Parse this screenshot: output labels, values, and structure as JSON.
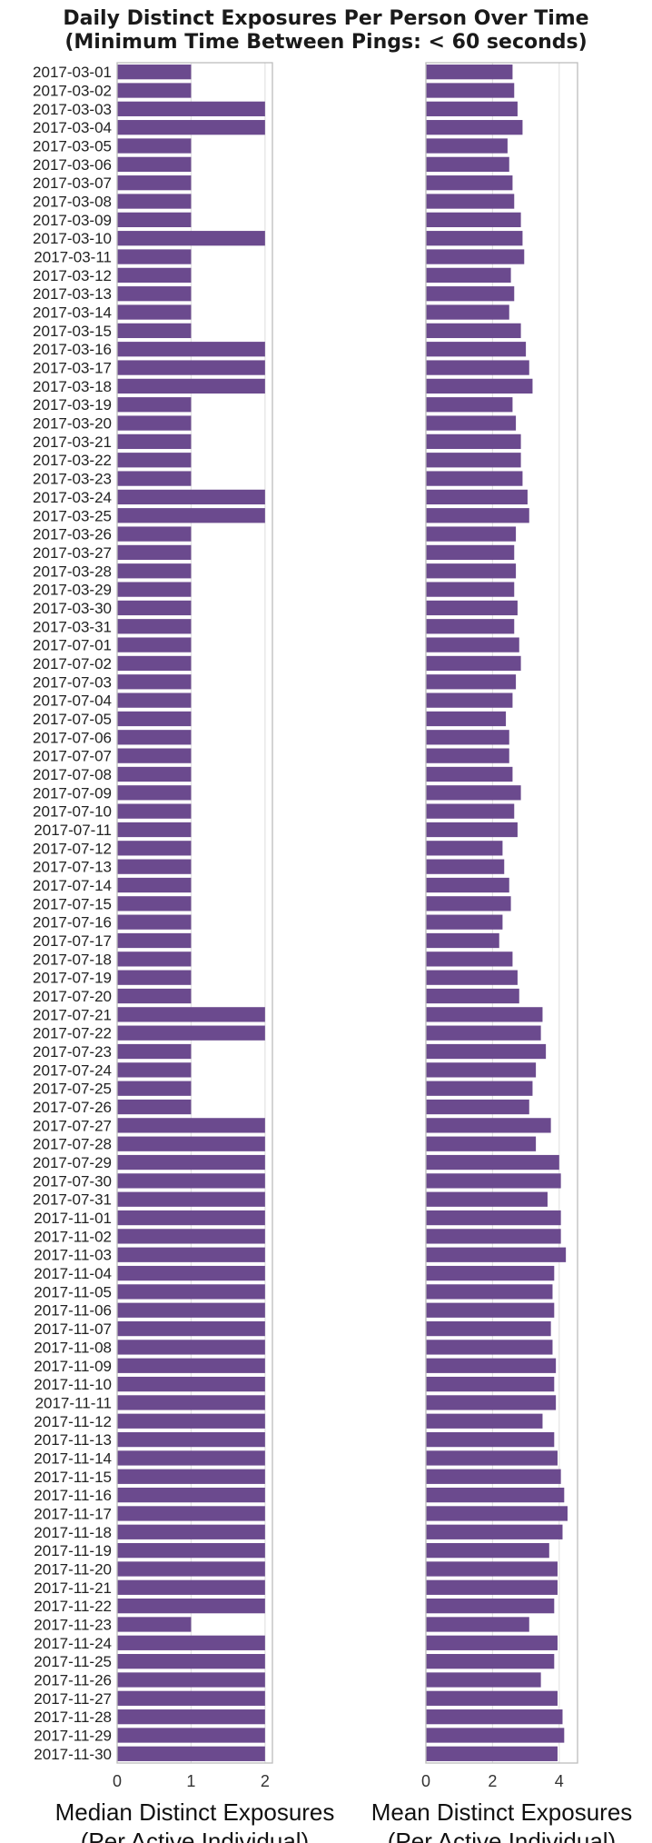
{
  "title": {
    "line1": "Daily Distinct Exposures Per Person Over Time",
    "line2": "(Minimum Time Between Pings: < 60 seconds)"
  },
  "colors": {
    "bar": "#6b4a8e",
    "grid": "#e3e3e3",
    "frame": "#bdbdbd"
  },
  "chart_data": [
    {
      "type": "bar",
      "orientation": "horizontal",
      "xlabel": [
        "Median Distinct Exposures",
        "(Per Active Individual)"
      ],
      "xlim": [
        0,
        2.1
      ],
      "xticks": [
        0,
        1,
        2
      ],
      "grid": true,
      "categories": [
        "2017-03-01",
        "2017-03-02",
        "2017-03-03",
        "2017-03-04",
        "2017-03-05",
        "2017-03-06",
        "2017-03-07",
        "2017-03-08",
        "2017-03-09",
        "2017-03-10",
        "2017-03-11",
        "2017-03-12",
        "2017-03-13",
        "2017-03-14",
        "2017-03-15",
        "2017-03-16",
        "2017-03-17",
        "2017-03-18",
        "2017-03-19",
        "2017-03-20",
        "2017-03-21",
        "2017-03-22",
        "2017-03-23",
        "2017-03-24",
        "2017-03-25",
        "2017-03-26",
        "2017-03-27",
        "2017-03-28",
        "2017-03-29",
        "2017-03-30",
        "2017-03-31",
        "2017-07-01",
        "2017-07-02",
        "2017-07-03",
        "2017-07-04",
        "2017-07-05",
        "2017-07-06",
        "2017-07-07",
        "2017-07-08",
        "2017-07-09",
        "2017-07-10",
        "2017-07-11",
        "2017-07-12",
        "2017-07-13",
        "2017-07-14",
        "2017-07-15",
        "2017-07-16",
        "2017-07-17",
        "2017-07-18",
        "2017-07-19",
        "2017-07-20",
        "2017-07-21",
        "2017-07-22",
        "2017-07-23",
        "2017-07-24",
        "2017-07-25",
        "2017-07-26",
        "2017-07-27",
        "2017-07-28",
        "2017-07-29",
        "2017-07-30",
        "2017-07-31",
        "2017-11-01",
        "2017-11-02",
        "2017-11-03",
        "2017-11-04",
        "2017-11-05",
        "2017-11-06",
        "2017-11-07",
        "2017-11-08",
        "2017-11-09",
        "2017-11-10",
        "2017-11-11",
        "2017-11-12",
        "2017-11-13",
        "2017-11-14",
        "2017-11-15",
        "2017-11-16",
        "2017-11-17",
        "2017-11-18",
        "2017-11-19",
        "2017-11-20",
        "2017-11-21",
        "2017-11-22",
        "2017-11-23",
        "2017-11-24",
        "2017-11-25",
        "2017-11-26",
        "2017-11-27",
        "2017-11-28",
        "2017-11-29",
        "2017-11-30"
      ],
      "values": [
        1,
        1,
        2,
        2,
        1,
        1,
        1,
        1,
        1,
        2,
        1,
        1,
        1,
        1,
        1,
        2,
        2,
        2,
        1,
        1,
        1,
        1,
        1,
        2,
        2,
        1,
        1,
        1,
        1,
        1,
        1,
        1,
        1,
        1,
        1,
        1,
        1,
        1,
        1,
        1,
        1,
        1,
        1,
        1,
        1,
        1,
        1,
        1,
        1,
        1,
        1,
        2,
        2,
        1,
        1,
        1,
        1,
        2,
        2,
        2,
        2,
        2,
        2,
        2,
        2,
        2,
        2,
        2,
        2,
        2,
        2,
        2,
        2,
        2,
        2,
        2,
        2,
        2,
        2,
        2,
        2,
        2,
        2,
        2,
        1,
        2,
        2,
        2,
        2,
        2,
        2,
        2
      ]
    },
    {
      "type": "bar",
      "orientation": "horizontal",
      "xlabel": [
        "Mean Distinct Exposures",
        "(Per Active Individual)"
      ],
      "xlim": [
        0,
        4.55
      ],
      "xticks": [
        0,
        2,
        4
      ],
      "grid": true,
      "categories_shared_with_left": true,
      "values": [
        2.6,
        2.65,
        2.75,
        2.9,
        2.45,
        2.5,
        2.6,
        2.65,
        2.85,
        2.9,
        2.95,
        2.55,
        2.65,
        2.5,
        2.85,
        3.0,
        3.1,
        3.2,
        2.6,
        2.7,
        2.85,
        2.85,
        2.9,
        3.05,
        3.1,
        2.7,
        2.65,
        2.7,
        2.65,
        2.75,
        2.65,
        2.8,
        2.85,
        2.7,
        2.6,
        2.4,
        2.5,
        2.5,
        2.6,
        2.85,
        2.65,
        2.75,
        2.3,
        2.35,
        2.5,
        2.55,
        2.3,
        2.2,
        2.6,
        2.75,
        2.8,
        3.5,
        3.45,
        3.6,
        3.3,
        3.2,
        3.1,
        3.75,
        3.3,
        4.0,
        4.05,
        3.65,
        4.05,
        4.05,
        4.2,
        3.85,
        3.8,
        3.85,
        3.75,
        3.8,
        3.9,
        3.85,
        3.9,
        3.5,
        3.85,
        3.95,
        4.05,
        4.15,
        4.25,
        4.1,
        3.7,
        3.95,
        3.95,
        3.85,
        3.1,
        3.95,
        3.85,
        3.45,
        3.95,
        4.1,
        4.15,
        3.95
      ]
    }
  ]
}
